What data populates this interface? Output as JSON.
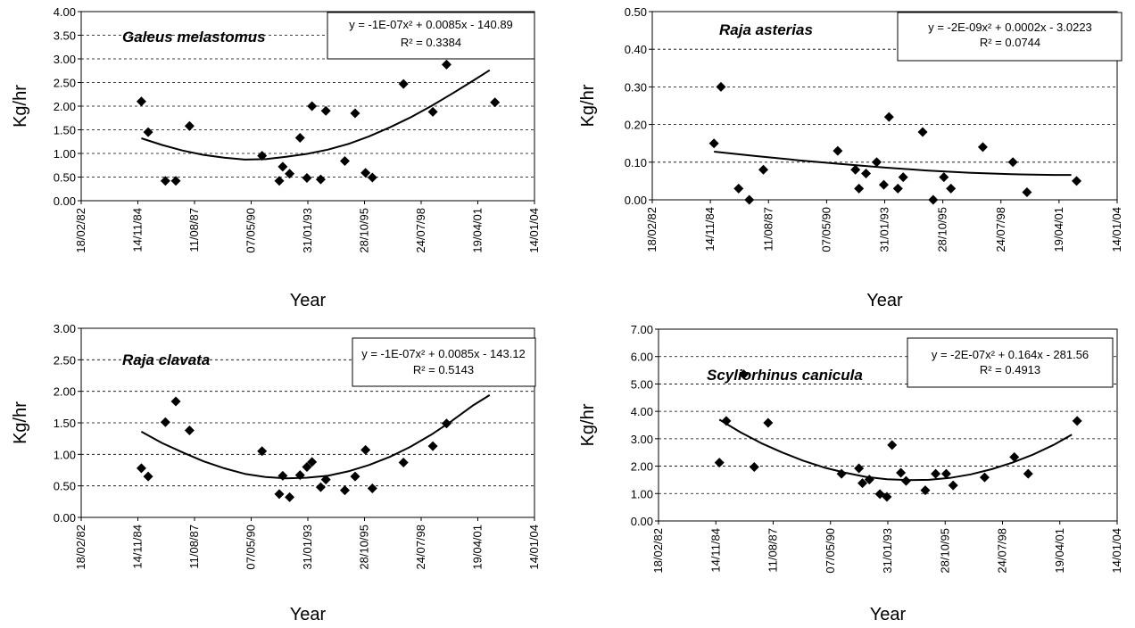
{
  "chart_data": [
    {
      "type": "scatter",
      "title": "Galeus melastomus",
      "equation": "y = -1E-07x² + 0.0085x - 140.89",
      "r2": "R² = 0.3384",
      "xlabel": "Year",
      "ylabel": "Kg/hr",
      "x_tick_labels": [
        "18/02/82",
        "14/11/84",
        "11/08/87",
        "07/05/90",
        "31/01/93",
        "28/10/95",
        "24/07/98",
        "19/04/01",
        "14/01/04"
      ],
      "xlim": [
        "18/02/82",
        "14/01/04"
      ],
      "y_tick_labels": [
        "0.00",
        "0.50",
        "1.00",
        "1.50",
        "2.00",
        "2.50",
        "3.00",
        "3.50",
        "4.00"
      ],
      "ylim": [
        0,
        4
      ],
      "grid": "horizontal-dashed",
      "points": [
        {
          "x": "15/01/85",
          "y": 2.1
        },
        {
          "x": "15/05/85",
          "y": 1.45
        },
        {
          "x": "15/03/86",
          "y": 0.42
        },
        {
          "x": "15/09/86",
          "y": 0.42
        },
        {
          "x": "15/05/87",
          "y": 1.58
        },
        {
          "x": "15/11/90",
          "y": 0.95
        },
        {
          "x": "15/09/91",
          "y": 0.42
        },
        {
          "x": "15/11/91",
          "y": 0.72
        },
        {
          "x": "15/03/92",
          "y": 0.57
        },
        {
          "x": "15/09/92",
          "y": 1.33
        },
        {
          "x": "15/01/93",
          "y": 0.48
        },
        {
          "x": "15/04/93",
          "y": 2.0
        },
        {
          "x": "15/09/93",
          "y": 0.45
        },
        {
          "x": "15/12/93",
          "y": 1.9
        },
        {
          "x": "15/11/94",
          "y": 0.84
        },
        {
          "x": "15/05/95",
          "y": 1.85
        },
        {
          "x": "15/11/95",
          "y": 0.59
        },
        {
          "x": "15/03/96",
          "y": 0.49
        },
        {
          "x": "15/09/97",
          "y": 2.47
        },
        {
          "x": "15/02/99",
          "y": 1.88
        },
        {
          "x": "15/10/99",
          "y": 2.88
        },
        {
          "x": "15/02/02",
          "y": 2.08
        }
      ],
      "trend": [
        {
          "x": "15/01/85",
          "y": 1.32
        },
        {
          "x": "15/01/86",
          "y": 1.18
        },
        {
          "x": "15/01/87",
          "y": 1.06
        },
        {
          "x": "15/01/88",
          "y": 0.97
        },
        {
          "x": "15/01/89",
          "y": 0.91
        },
        {
          "x": "15/01/90",
          "y": 0.87
        },
        {
          "x": "15/01/91",
          "y": 0.88
        },
        {
          "x": "15/01/92",
          "y": 0.93
        },
        {
          "x": "15/01/93",
          "y": 0.99
        },
        {
          "x": "15/01/94",
          "y": 1.08
        },
        {
          "x": "15/01/95",
          "y": 1.2
        },
        {
          "x": "15/01/96",
          "y": 1.36
        },
        {
          "x": "15/01/97",
          "y": 1.55
        },
        {
          "x": "15/01/98",
          "y": 1.76
        },
        {
          "x": "15/01/99",
          "y": 2.0
        },
        {
          "x": "15/01/00",
          "y": 2.26
        },
        {
          "x": "15/01/01",
          "y": 2.53
        },
        {
          "x": "15/11/01",
          "y": 2.76
        }
      ]
    },
    {
      "type": "scatter",
      "title": "Raja asterias",
      "equation": "y = -2E-09x² + 0.0002x - 3.0223",
      "r2": "R² = 0.0744",
      "xlabel": "Year",
      "ylabel": "Kg/hr",
      "x_tick_labels": [
        "18/02/82",
        "14/11/84",
        "11/08/87",
        "07/05/90",
        "31/01/93",
        "28/10/95",
        "24/07/98",
        "19/04/01",
        "14/01/04"
      ],
      "xlim": [
        "18/02/82",
        "14/01/04"
      ],
      "y_tick_labels": [
        "0.00",
        "0.10",
        "0.20",
        "0.30",
        "0.40",
        "0.50"
      ],
      "ylim": [
        0,
        0.5
      ],
      "grid": "horizontal-dashed",
      "points": [
        {
          "x": "15/01/85",
          "y": 0.15
        },
        {
          "x": "15/05/85",
          "y": 0.3
        },
        {
          "x": "15/03/86",
          "y": 0.03
        },
        {
          "x": "15/09/86",
          "y": 0.0
        },
        {
          "x": "15/05/87",
          "y": 0.08
        },
        {
          "x": "15/11/90",
          "y": 0.13
        },
        {
          "x": "15/09/91",
          "y": 0.08
        },
        {
          "x": "15/11/91",
          "y": 0.03
        },
        {
          "x": "15/03/92",
          "y": 0.07
        },
        {
          "x": "15/09/92",
          "y": 0.1
        },
        {
          "x": "15/01/93",
          "y": 0.04
        },
        {
          "x": "15/04/93",
          "y": 0.22
        },
        {
          "x": "15/09/93",
          "y": 0.03
        },
        {
          "x": "15/12/93",
          "y": 0.06
        },
        {
          "x": "15/11/94",
          "y": 0.18
        },
        {
          "x": "15/05/95",
          "y": 0.0
        },
        {
          "x": "15/11/95",
          "y": 0.06
        },
        {
          "x": "15/03/96",
          "y": 0.03
        },
        {
          "x": "15/09/97",
          "y": 0.14
        },
        {
          "x": "15/02/99",
          "y": 0.1
        },
        {
          "x": "15/10/99",
          "y": 0.02
        },
        {
          "x": "15/02/02",
          "y": 0.05
        }
      ],
      "trend": [
        {
          "x": "15/01/85",
          "y": 0.128
        },
        {
          "x": "15/01/87",
          "y": 0.116
        },
        {
          "x": "15/01/89",
          "y": 0.105
        },
        {
          "x": "15/01/91",
          "y": 0.095
        },
        {
          "x": "15/01/93",
          "y": 0.086
        },
        {
          "x": "15/01/95",
          "y": 0.078
        },
        {
          "x": "15/01/97",
          "y": 0.072
        },
        {
          "x": "15/01/99",
          "y": 0.068
        },
        {
          "x": "15/01/01",
          "y": 0.066
        },
        {
          "x": "15/11/01",
          "y": 0.066
        }
      ]
    },
    {
      "type": "scatter",
      "title": "Raja clavata",
      "equation": "y = -1E-07x² + 0.0085x - 143.12",
      "r2": "R² = 0.5143",
      "xlabel": "Year",
      "ylabel": "Kg/hr",
      "x_tick_labels": [
        "18/02/82",
        "14/11/84",
        "11/08/87",
        "07/05/90",
        "31/01/93",
        "28/10/95",
        "24/07/98",
        "19/04/01",
        "14/01/04"
      ],
      "xlim": [
        "18/02/82",
        "14/01/04"
      ],
      "y_tick_labels": [
        "0.00",
        "0.50",
        "1.00",
        "1.50",
        "2.00",
        "2.50",
        "3.00"
      ],
      "ylim": [
        0,
        3
      ],
      "grid": "horizontal-dashed",
      "points": [
        {
          "x": "15/01/85",
          "y": 0.78
        },
        {
          "x": "15/05/85",
          "y": 0.65
        },
        {
          "x": "15/03/86",
          "y": 1.51
        },
        {
          "x": "15/09/86",
          "y": 1.84
        },
        {
          "x": "15/05/87",
          "y": 1.38
        },
        {
          "x": "15/11/90",
          "y": 1.05
        },
        {
          "x": "15/09/91",
          "y": 0.37
        },
        {
          "x": "15/11/91",
          "y": 0.66
        },
        {
          "x": "15/03/92",
          "y": 0.32
        },
        {
          "x": "15/09/92",
          "y": 0.67
        },
        {
          "x": "15/01/93",
          "y": 0.8
        },
        {
          "x": "15/04/93",
          "y": 0.88
        },
        {
          "x": "15/09/93",
          "y": 0.48
        },
        {
          "x": "15/12/93",
          "y": 0.6
        },
        {
          "x": "15/11/94",
          "y": 0.43
        },
        {
          "x": "15/05/95",
          "y": 0.65
        },
        {
          "x": "15/11/95",
          "y": 1.07
        },
        {
          "x": "15/03/96",
          "y": 0.46
        },
        {
          "x": "15/09/97",
          "y": 0.87
        },
        {
          "x": "15/02/99",
          "y": 1.13
        },
        {
          "x": "15/10/99",
          "y": 1.49
        },
        {
          "x": "15/02/02",
          "y": 2.16
        }
      ],
      "trend": [
        {
          "x": "15/01/85",
          "y": 1.36
        },
        {
          "x": "15/01/86",
          "y": 1.18
        },
        {
          "x": "15/01/87",
          "y": 1.03
        },
        {
          "x": "15/01/88",
          "y": 0.89
        },
        {
          "x": "15/01/89",
          "y": 0.78
        },
        {
          "x": "15/01/90",
          "y": 0.69
        },
        {
          "x": "15/01/91",
          "y": 0.64
        },
        {
          "x": "15/01/92",
          "y": 0.62
        },
        {
          "x": "15/01/93",
          "y": 0.63
        },
        {
          "x": "15/01/94",
          "y": 0.66
        },
        {
          "x": "15/01/95",
          "y": 0.73
        },
        {
          "x": "15/01/96",
          "y": 0.83
        },
        {
          "x": "15/01/97",
          "y": 0.96
        },
        {
          "x": "15/01/98",
          "y": 1.12
        },
        {
          "x": "15/01/99",
          "y": 1.31
        },
        {
          "x": "15/01/00",
          "y": 1.53
        },
        {
          "x": "15/01/01",
          "y": 1.77
        },
        {
          "x": "15/11/01",
          "y": 1.94
        }
      ]
    },
    {
      "type": "scatter",
      "title": "Scyliorhinus canicula",
      "equation": "y = -2E-07x² + 0.164x - 281.56",
      "r2": "R² = 0.4913",
      "xlabel": "Year",
      "ylabel": "Kg/hr",
      "x_tick_labels": [
        "18/02/82",
        "14/11/84",
        "11/08/87",
        "07/05/90",
        "31/01/93",
        "28/10/95",
        "24/07/98",
        "19/04/01",
        "14/01/04"
      ],
      "xlim": [
        "18/02/82",
        "14/01/04"
      ],
      "y_tick_labels": [
        "0.00",
        "1.00",
        "2.00",
        "3.00",
        "4.00",
        "5.00",
        "6.00",
        "7.00"
      ],
      "ylim": [
        0,
        7
      ],
      "grid": "horizontal-dashed",
      "points": [
        {
          "x": "15/01/85",
          "y": 2.13
        },
        {
          "x": "15/05/85",
          "y": 3.65
        },
        {
          "x": "15/03/86",
          "y": 5.35
        },
        {
          "x": "15/09/86",
          "y": 1.97
        },
        {
          "x": "15/05/87",
          "y": 3.58
        },
        {
          "x": "15/11/90",
          "y": 1.72
        },
        {
          "x": "15/09/91",
          "y": 1.92
        },
        {
          "x": "15/11/91",
          "y": 1.38
        },
        {
          "x": "15/03/92",
          "y": 1.51
        },
        {
          "x": "15/09/92",
          "y": 0.98
        },
        {
          "x": "15/01/93",
          "y": 0.88
        },
        {
          "x": "15/04/93",
          "y": 2.77
        },
        {
          "x": "15/09/93",
          "y": 1.76
        },
        {
          "x": "15/12/93",
          "y": 1.46
        },
        {
          "x": "15/11/94",
          "y": 1.12
        },
        {
          "x": "15/05/95",
          "y": 1.72
        },
        {
          "x": "15/11/95",
          "y": 1.72
        },
        {
          "x": "15/03/96",
          "y": 1.3
        },
        {
          "x": "15/09/97",
          "y": 1.59
        },
        {
          "x": "15/02/99",
          "y": 2.33
        },
        {
          "x": "15/10/99",
          "y": 1.72
        },
        {
          "x": "15/02/02",
          "y": 3.65
        }
      ],
      "trend": [
        {
          "x": "15/01/85",
          "y": 3.7
        },
        {
          "x": "15/01/86",
          "y": 3.24
        },
        {
          "x": "15/01/87",
          "y": 2.84
        },
        {
          "x": "15/01/88",
          "y": 2.5
        },
        {
          "x": "15/01/89",
          "y": 2.2
        },
        {
          "x": "15/01/90",
          "y": 1.95
        },
        {
          "x": "15/01/91",
          "y": 1.76
        },
        {
          "x": "15/01/92",
          "y": 1.61
        },
        {
          "x": "15/01/93",
          "y": 1.52
        },
        {
          "x": "15/01/94",
          "y": 1.49
        },
        {
          "x": "15/01/95",
          "y": 1.5
        },
        {
          "x": "15/01/96",
          "y": 1.57
        },
        {
          "x": "15/01/97",
          "y": 1.7
        },
        {
          "x": "15/01/98",
          "y": 1.89
        },
        {
          "x": "15/01/99",
          "y": 2.13
        },
        {
          "x": "15/01/00",
          "y": 2.43
        },
        {
          "x": "15/01/01",
          "y": 2.79
        },
        {
          "x": "15/11/01",
          "y": 3.15
        }
      ]
    }
  ]
}
